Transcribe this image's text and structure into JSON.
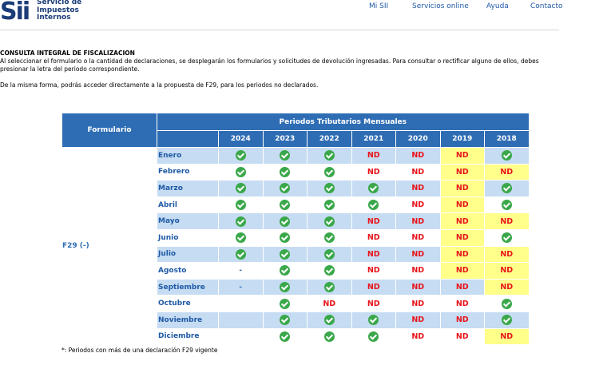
{
  "logo": {
    "abbr": "Sii",
    "line1": "Servicio de",
    "line2": "Impuestos",
    "line3": "Internos"
  },
  "nav": [
    "Mi SII",
    "Servicios online",
    "Ayuda",
    "Contacto"
  ],
  "intro": {
    "heading": "CONSULTA INTEGRAL DE FISCALIZACION",
    "line1": "Al seleccionar el formulario o la cantidad de declaraciones, se desplegarán los formularios y solicitudes de devolución ingresadas. Para consultar o rectificar alguno de ellos, debes",
    "line2": "presionar la letra del periodo correspondiente.",
    "line3": "De la misma forma, podrás acceder directamente a la propuesta de F29, para los periodos no declarados."
  },
  "table": {
    "form_header": "Formulario",
    "period_header": "Periodos Tributarios Mensuales",
    "form_label": "F29 (-)",
    "years": [
      "2024",
      "2023",
      "2022",
      "2021",
      "2020",
      "2019",
      "2018"
    ],
    "highlight_color": "#ffff8a",
    "rows": [
      {
        "month": "Enero",
        "cells": [
          "ok",
          "ok",
          "ok",
          "ND",
          "ND",
          "ND",
          "ok"
        ],
        "hl": [
          0,
          0,
          0,
          0,
          0,
          1,
          0
        ]
      },
      {
        "month": "Febrero",
        "cells": [
          "ok",
          "ok",
          "ok",
          "ND",
          "ND",
          "ND",
          "ND"
        ],
        "hl": [
          0,
          0,
          0,
          0,
          0,
          1,
          1
        ]
      },
      {
        "month": "Marzo",
        "cells": [
          "ok",
          "ok",
          "ok",
          "ok",
          "ND",
          "ND",
          "ok"
        ],
        "hl": [
          0,
          0,
          0,
          0,
          0,
          1,
          0
        ]
      },
      {
        "month": "Abril",
        "cells": [
          "ok",
          "ok",
          "ok",
          "ok",
          "ND",
          "ND",
          "ok"
        ],
        "hl": [
          0,
          0,
          0,
          0,
          0,
          1,
          0
        ]
      },
      {
        "month": "Mayo",
        "cells": [
          "ok",
          "ok",
          "ok",
          "ND",
          "ND",
          "ND",
          "ND"
        ],
        "hl": [
          0,
          0,
          0,
          0,
          0,
          1,
          1
        ]
      },
      {
        "month": "Junio",
        "cells": [
          "ok",
          "ok",
          "ok",
          "ND",
          "ND",
          "ND",
          "ok"
        ],
        "hl": [
          0,
          0,
          0,
          0,
          0,
          1,
          0
        ]
      },
      {
        "month": "Julio",
        "cells": [
          "ok",
          "ok",
          "ok",
          "ND",
          "ND",
          "ND",
          "ND"
        ],
        "hl": [
          0,
          0,
          0,
          0,
          0,
          1,
          1
        ]
      },
      {
        "month": "Agosto",
        "cells": [
          "-",
          "ok",
          "ok",
          "ND",
          "ND",
          "ND",
          "ND"
        ],
        "hl": [
          0,
          0,
          0,
          0,
          0,
          1,
          1
        ]
      },
      {
        "month": "Septiembre",
        "cells": [
          "-",
          "ok",
          "ok",
          "ND",
          "ND",
          "ND",
          "ND"
        ],
        "hl": [
          0,
          0,
          0,
          0,
          0,
          0,
          1
        ]
      },
      {
        "month": "Octubre",
        "cells": [
          "",
          "ok",
          "ND",
          "ND",
          "ND",
          "ND",
          "ok"
        ],
        "hl": [
          0,
          0,
          0,
          0,
          0,
          0,
          0
        ]
      },
      {
        "month": "Noviembre",
        "cells": [
          "",
          "ok",
          "ok",
          "ok",
          "ND",
          "ND",
          "ok"
        ],
        "hl": [
          0,
          0,
          0,
          0,
          0,
          0,
          0
        ]
      },
      {
        "month": "Diciembre",
        "cells": [
          "",
          "ok",
          "ok",
          "ok",
          "ND",
          "ND",
          "ND"
        ],
        "hl": [
          0,
          0,
          0,
          0,
          0,
          0,
          1
        ]
      }
    ]
  },
  "footnote": "*: Periodos con más de una declaración F29 vigente"
}
